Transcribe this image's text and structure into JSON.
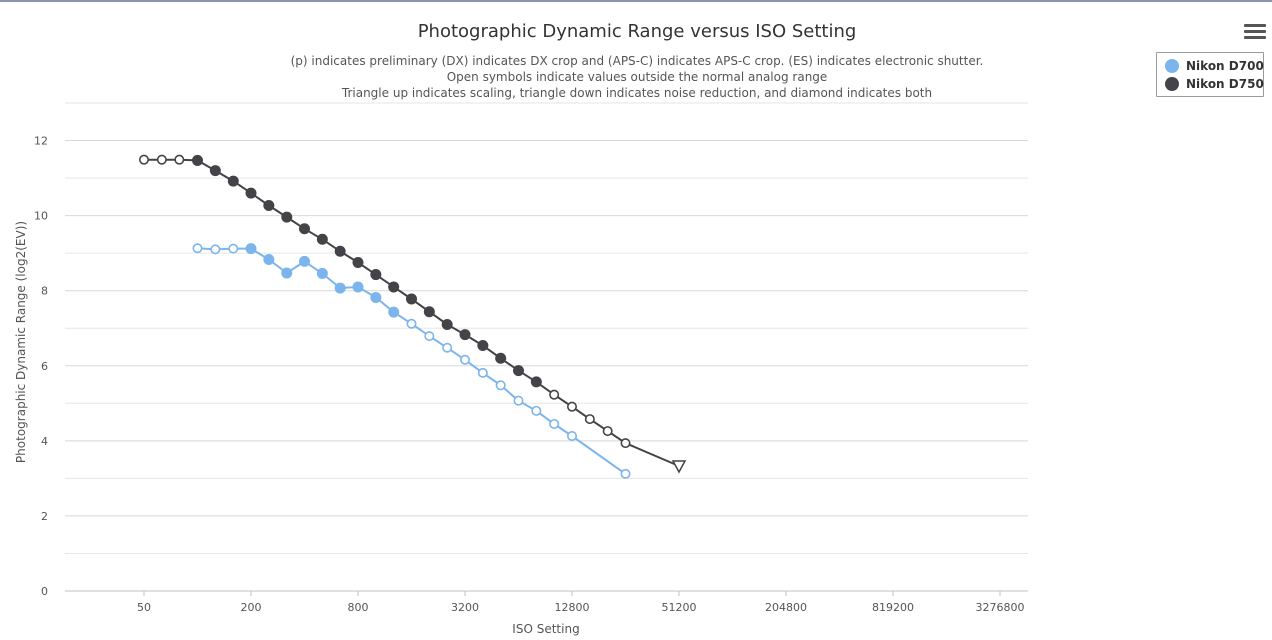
{
  "chart_data": {
    "type": "line",
    "title": "Photographic Dynamic Range versus ISO Setting",
    "subtitle": [
      "(p) indicates preliminary (DX) indicates DX crop and (APS-C) indicates APS-C crop. (ES) indicates electronic shutter.",
      "Open symbols indicate values outside the normal analog range",
      "Triangle up indicates scaling, triangle down indicates noise reduction, and diamond indicates both"
    ],
    "xlabel": "ISO Setting",
    "ylabel": "Photographic Dynamic Range (log2(EV))",
    "x_scale": "log2",
    "x_ticks": [
      "50",
      "200",
      "800",
      "3200",
      "12800",
      "51200",
      "204800",
      "819200",
      "3276800"
    ],
    "y_ticks": [
      "0",
      "2",
      "4",
      "6",
      "8",
      "10",
      "12"
    ],
    "ylim": [
      0,
      13
    ],
    "grid": true,
    "legend_position": "top-right",
    "series": [
      {
        "name": "Nikon D700",
        "color": "#7cb5ec",
        "points": [
          {
            "iso": 100,
            "dr": 9.13,
            "open": true
          },
          {
            "iso": 126,
            "dr": 9.1,
            "open": true
          },
          {
            "iso": 159,
            "dr": 9.12,
            "open": true
          },
          {
            "iso": 200,
            "dr": 9.12,
            "open": false
          },
          {
            "iso": 252,
            "dr": 8.83,
            "open": false
          },
          {
            "iso": 318,
            "dr": 8.47,
            "open": false
          },
          {
            "iso": 400,
            "dr": 8.78,
            "open": false
          },
          {
            "iso": 504,
            "dr": 8.46,
            "open": false
          },
          {
            "iso": 635,
            "dr": 8.07,
            "open": false
          },
          {
            "iso": 800,
            "dr": 8.1,
            "open": false
          },
          {
            "iso": 1008,
            "dr": 7.82,
            "open": false
          },
          {
            "iso": 1270,
            "dr": 7.43,
            "open": false
          },
          {
            "iso": 1600,
            "dr": 7.12,
            "open": true
          },
          {
            "iso": 2016,
            "dr": 6.79,
            "open": true
          },
          {
            "iso": 2540,
            "dr": 6.48,
            "open": true
          },
          {
            "iso": 3200,
            "dr": 6.16,
            "open": true
          },
          {
            "iso": 4032,
            "dr": 5.81,
            "open": true
          },
          {
            "iso": 5080,
            "dr": 5.48,
            "open": true
          },
          {
            "iso": 6400,
            "dr": 5.07,
            "open": true
          },
          {
            "iso": 8064,
            "dr": 4.8,
            "open": true
          },
          {
            "iso": 10160,
            "dr": 4.45,
            "open": true
          },
          {
            "iso": 12800,
            "dr": 4.13,
            "open": true
          },
          {
            "iso": 25600,
            "dr": 3.12,
            "open": true
          }
        ]
      },
      {
        "name": "Nikon D750",
        "color": "#434348",
        "points": [
          {
            "iso": 50,
            "dr": 11.49,
            "open": true
          },
          {
            "iso": 63,
            "dr": 11.49,
            "open": true
          },
          {
            "iso": 79,
            "dr": 11.49,
            "open": true
          },
          {
            "iso": 100,
            "dr": 11.47,
            "open": false
          },
          {
            "iso": 126,
            "dr": 11.2,
            "open": false
          },
          {
            "iso": 159,
            "dr": 10.92,
            "open": false
          },
          {
            "iso": 200,
            "dr": 10.6,
            "open": false
          },
          {
            "iso": 252,
            "dr": 10.27,
            "open": false
          },
          {
            "iso": 318,
            "dr": 9.96,
            "open": false
          },
          {
            "iso": 400,
            "dr": 9.65,
            "open": false
          },
          {
            "iso": 504,
            "dr": 9.37,
            "open": false
          },
          {
            "iso": 635,
            "dr": 9.05,
            "open": false
          },
          {
            "iso": 800,
            "dr": 8.75,
            "open": false
          },
          {
            "iso": 1008,
            "dr": 8.43,
            "open": false
          },
          {
            "iso": 1270,
            "dr": 8.1,
            "open": false
          },
          {
            "iso": 1600,
            "dr": 7.78,
            "open": false
          },
          {
            "iso": 2016,
            "dr": 7.44,
            "open": false
          },
          {
            "iso": 2540,
            "dr": 7.1,
            "open": false
          },
          {
            "iso": 3200,
            "dr": 6.83,
            "open": false
          },
          {
            "iso": 4032,
            "dr": 6.54,
            "open": false
          },
          {
            "iso": 5080,
            "dr": 6.2,
            "open": false
          },
          {
            "iso": 6400,
            "dr": 5.87,
            "open": false
          },
          {
            "iso": 8064,
            "dr": 5.57,
            "open": false
          },
          {
            "iso": 10160,
            "dr": 5.23,
            "open": true
          },
          {
            "iso": 12800,
            "dr": 4.91,
            "open": true
          },
          {
            "iso": 16128,
            "dr": 4.58,
            "open": true
          },
          {
            "iso": 20320,
            "dr": 4.26,
            "open": true
          },
          {
            "iso": 25600,
            "dr": 3.94,
            "open": true
          },
          {
            "iso": 51200,
            "dr": 3.33,
            "open": true,
            "marker": "triangle-down"
          }
        ]
      }
    ]
  },
  "icons": {
    "menu": "hamburger-menu-icon"
  }
}
